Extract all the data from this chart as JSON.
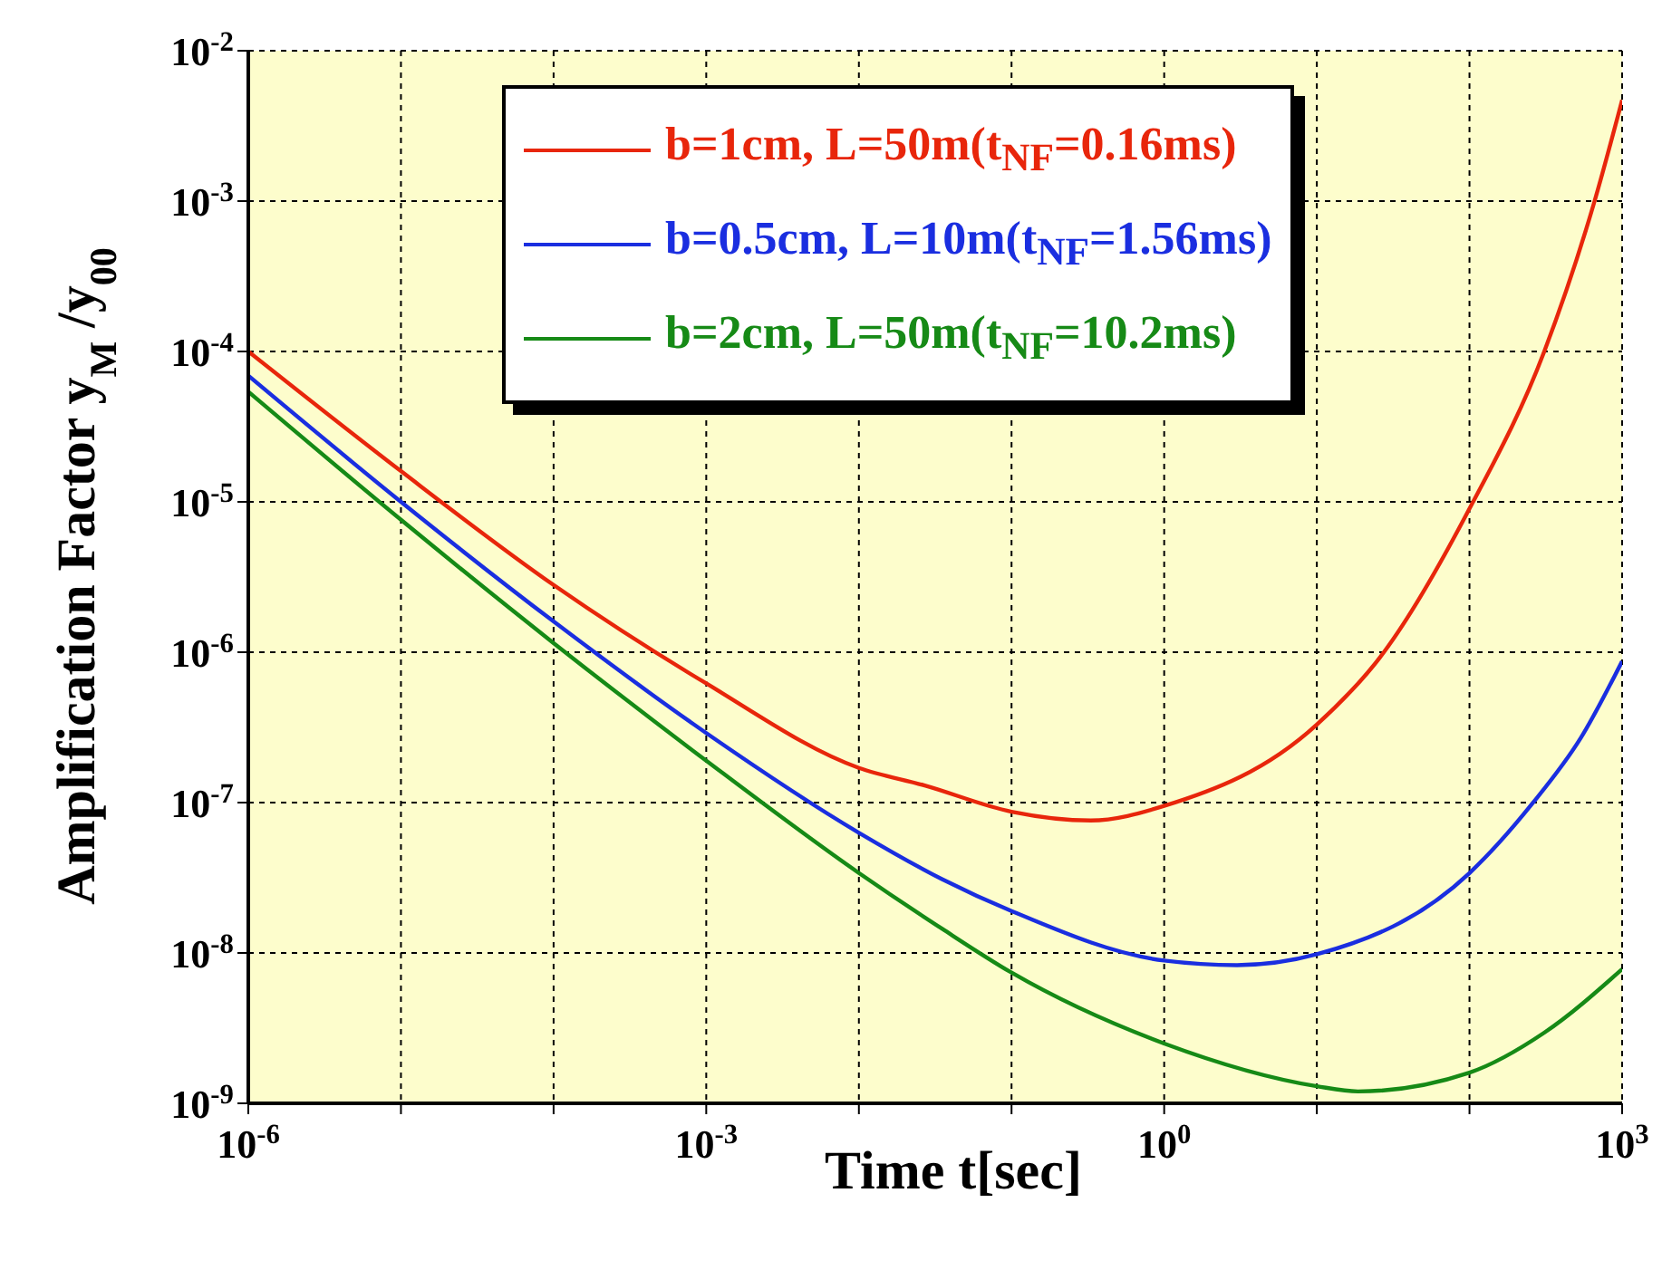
{
  "chart_data": {
    "type": "line",
    "xlabel": "Time t[sec]",
    "ylabel": "Amplification Factor y$_{M}$ /y$_{00}$",
    "log": "xy",
    "grid": true,
    "legend": "top right",
    "line_style": "solid",
    "marker": "none",
    "xlim": [
      1e-06,
      1000
    ],
    "ylim": [
      1e-09,
      0.01
    ],
    "xticks": [
      {
        "value": 1e-06,
        "label": "10$^{-6}$"
      },
      {
        "value": 1e-05,
        "label": null
      },
      {
        "value": 0.0001,
        "label": null
      },
      {
        "value": 0.001,
        "label": "10$^{-3}$"
      },
      {
        "value": 0.01,
        "label": null
      },
      {
        "value": 0.1,
        "label": null
      },
      {
        "value": 1,
        "label": "10$^{0}$"
      },
      {
        "value": 10,
        "label": null
      },
      {
        "value": 100,
        "label": null
      },
      {
        "value": 1000,
        "label": "10$^{3}$"
      }
    ],
    "yticks": [
      {
        "value": 1e-09,
        "label": "10$^{-9}$"
      },
      {
        "value": 1e-08,
        "label": "10$^{-8}$"
      },
      {
        "value": 1e-07,
        "label": "10$^{-7}$"
      },
      {
        "value": 1e-06,
        "label": "10$^{-6}$"
      },
      {
        "value": 1e-05,
        "label": "10$^{-5}$"
      },
      {
        "value": 0.0001,
        "label": "10$^{-4}$"
      },
      {
        "value": 0.001,
        "label": "10$^{-3}$"
      },
      {
        "value": 0.01,
        "label": "10$^{-2}$"
      }
    ],
    "series": [
      {
        "name": "b=1cm, L=50m(t$_{NF}$=0.16ms)",
        "color": "#e8260b",
        "x": [
          1e-06,
          1e-05,
          0.0001,
          0.001,
          0.01,
          0.027,
          0.1,
          0.33,
          1,
          10,
          27.5,
          100,
          309,
          660,
          1000
        ],
        "values": [
          0.0001,
          1.6e-05,
          2.8e-06,
          6.2e-07,
          1.7e-07,
          1.3e-07,
          8.7e-08,
          7.6e-08,
          9.5e-08,
          3.3e-07,
          1e-06,
          9e-06,
          0.0001,
          0.001,
          0.0047
        ]
      },
      {
        "name": "b=0.5cm, L=10m(t$_{NF}$=1.56ms)",
        "color": "#1a2ee0",
        "x": [
          1e-06,
          1e-05,
          0.0001,
          0.001,
          0.01,
          0.035,
          0.1,
          1,
          3,
          10,
          100,
          257,
          537,
          1000
        ],
        "values": [
          6.9e-05,
          1e-05,
          1.6e-06,
          2.9e-07,
          6.3e-08,
          3.1e-08,
          1.9e-08,
          8.9e-09,
          8.3e-09,
          9.8e-09,
          3.4e-08,
          9.8e-08,
          2.7e-07,
          8.7e-07
        ]
      },
      {
        "name": "b=2cm, L=50m(t$_{NF}$=10.2ms)",
        "color": "#168a16",
        "x": [
          1e-06,
          1e-05,
          0.0001,
          0.001,
          0.01,
          0.035,
          0.1,
          1,
          10,
          18.6,
          100,
          309,
          1000
        ],
        "values": [
          5.4e-05,
          7.6e-06,
          1.15e-06,
          1.9e-07,
          3.4e-08,
          1.45e-08,
          7.4e-09,
          2.5e-09,
          1.3e-09,
          1.2e-09,
          1.6e-09,
          2.95e-09,
          7.8e-09
        ]
      }
    ]
  }
}
